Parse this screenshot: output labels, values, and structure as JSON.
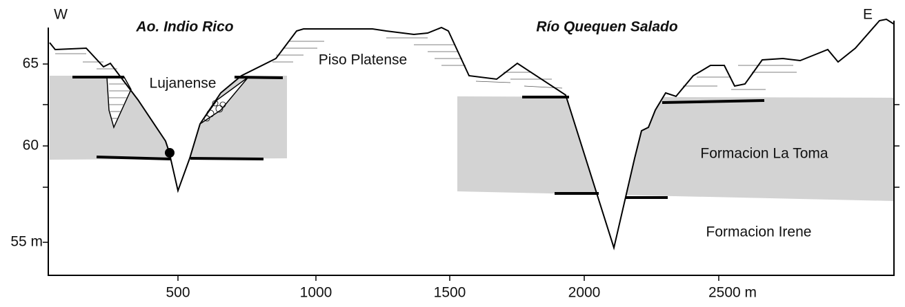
{
  "labels": {
    "west": "W",
    "east": "E",
    "valley_1": "Ao. Indio Rico",
    "valley_2": "Río Quequen Salado",
    "piso_platense": "Piso Platense",
    "lujanense": "Lujanense",
    "la_toma": "Formacion La Toma",
    "irene": "Formacion Irene"
  },
  "axes": {
    "x_ticks": [
      "500",
      "1000",
      "1500",
      "2000",
      "2500 m"
    ],
    "y_ticks": [
      "65",
      "60",
      "55 m"
    ]
  }
}
